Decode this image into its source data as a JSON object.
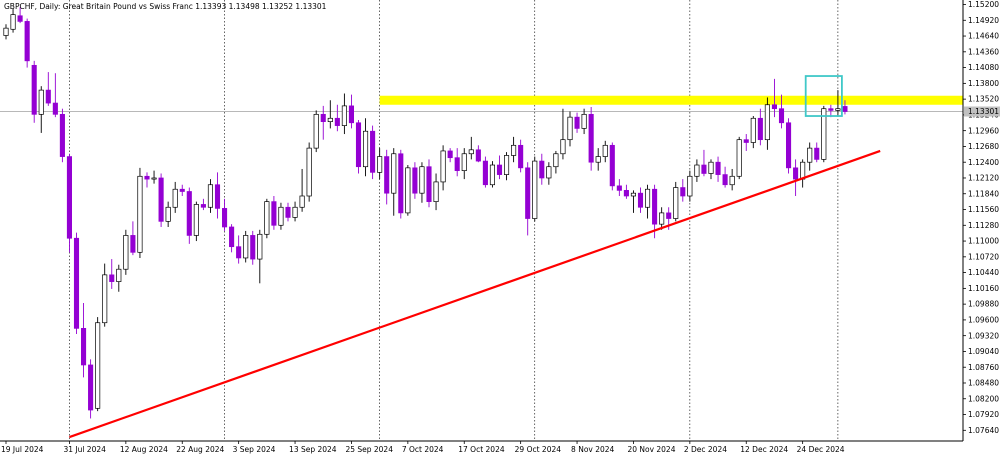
{
  "chart_data": {
    "type": "candlestick",
    "title": "GBPCHF, Daily:  Great Britain Pound vs Swiss Franc  1.13393 1.13498 1.13252 1.13301",
    "symbol": "GBPCHF",
    "timeframe": "Daily",
    "description": "Great Britain Pound vs Swiss Franc",
    "ohlc_header": "1.13393 1.13498 1.13252 1.13301",
    "current_price_label": "1.13301",
    "ylim": [
      1.0745,
      1.1528
    ],
    "y_ticks": [
      "1.15200",
      "1.14920",
      "1.14640",
      "1.14360",
      "1.14080",
      "1.13800",
      "1.13520",
      "1.13240",
      "1.12960",
      "1.12680",
      "1.12400",
      "1.12120",
      "1.11840",
      "1.11560",
      "1.11280",
      "1.11000",
      "1.10720",
      "1.10440",
      "1.10160",
      "1.09880",
      "1.09600",
      "1.09320",
      "1.09040",
      "1.08760",
      "1.08480",
      "1.08200",
      "1.07920",
      "1.07640"
    ],
    "x_labels": [
      {
        "label": "19 Jul 2024",
        "index": 0
      },
      {
        "label": "31 Jul 2024",
        "index": 9
      },
      {
        "label": "12 Aug 2024",
        "index": 17
      },
      {
        "label": "22 Aug 2024",
        "index": 25
      },
      {
        "label": "3 Sep 2024",
        "index": 33
      },
      {
        "label": "13 Sep 2024",
        "index": 41
      },
      {
        "label": "25 Sep 2024",
        "index": 49
      },
      {
        "label": "7 Oct 2024",
        "index": 57
      },
      {
        "label": "17 Oct 2024",
        "index": 65
      },
      {
        "label": "29 Oct 2024",
        "index": 73
      },
      {
        "label": "8 Nov 2024",
        "index": 81
      },
      {
        "label": "20 Nov 2024",
        "index": 89
      },
      {
        "label": "2 Dec 2024",
        "index": 97
      },
      {
        "label": "12 Dec 2024",
        "index": 105
      },
      {
        "label": "24 Dec 2024",
        "index": 113
      }
    ],
    "vgrid_indices": [
      9,
      31,
      53,
      75,
      97,
      118
    ],
    "colors": {
      "bull_fill": "#ffffff",
      "bull_border": "#000000",
      "bear_fill": "#9400d3",
      "bear_border": "#9400d3",
      "wick_bull": "#000000",
      "wick_bear": "#9400d3",
      "resistance": "#ffff00",
      "trendline": "#ff0000",
      "box": "#40c8c8",
      "price_line": "#a0a0a0"
    },
    "resistance_zone": {
      "low": 1.1342,
      "high": 1.1358
    },
    "trendline": {
      "from": {
        "index": 9,
        "price": 1.0752
      },
      "to": {
        "index": 124,
        "price": 1.126
      }
    },
    "highlight_box": {
      "index_from": 114,
      "index_to": 118,
      "low": 1.1322,
      "high": 1.1393
    },
    "candles": [
      {
        "o": 1.1465,
        "h": 1.1485,
        "l": 1.1458,
        "c": 1.1478
      },
      {
        "o": 1.1476,
        "h": 1.1512,
        "l": 1.147,
        "c": 1.1502
      },
      {
        "o": 1.15,
        "h": 1.1515,
        "l": 1.1487,
        "c": 1.149
      },
      {
        "o": 1.149,
        "h": 1.1495,
        "l": 1.1408,
        "c": 1.142
      },
      {
        "o": 1.1412,
        "h": 1.142,
        "l": 1.131,
        "c": 1.1325
      },
      {
        "o": 1.1325,
        "h": 1.1375,
        "l": 1.1292,
        "c": 1.1368
      },
      {
        "o": 1.1368,
        "h": 1.14,
        "l": 1.134,
        "c": 1.1345
      },
      {
        "o": 1.1345,
        "h": 1.1398,
        "l": 1.132,
        "c": 1.1325
      },
      {
        "o": 1.1325,
        "h": 1.1335,
        "l": 1.124,
        "c": 1.125
      },
      {
        "o": 1.125,
        "h": 1.1255,
        "l": 1.108,
        "c": 1.1105
      },
      {
        "o": 1.1105,
        "h": 1.1115,
        "l": 1.0935,
        "c": 1.0945
      },
      {
        "o": 1.0945,
        "h": 1.099,
        "l": 1.0858,
        "c": 1.088
      },
      {
        "o": 1.088,
        "h": 1.089,
        "l": 1.0785,
        "c": 1.08
      },
      {
        "o": 1.0803,
        "h": 1.0965,
        "l": 1.0798,
        "c": 1.0955
      },
      {
        "o": 1.0955,
        "h": 1.106,
        "l": 1.0948,
        "c": 1.104
      },
      {
        "o": 1.104,
        "h": 1.1068,
        "l": 1.1015,
        "c": 1.1028
      },
      {
        "o": 1.1028,
        "h": 1.1058,
        "l": 1.101,
        "c": 1.105
      },
      {
        "o": 1.105,
        "h": 1.112,
        "l": 1.104,
        "c": 1.111
      },
      {
        "o": 1.111,
        "h": 1.1135,
        "l": 1.1075,
        "c": 1.108
      },
      {
        "o": 1.108,
        "h": 1.123,
        "l": 1.107,
        "c": 1.1215
      },
      {
        "o": 1.1215,
        "h": 1.1222,
        "l": 1.1195,
        "c": 1.121
      },
      {
        "o": 1.121,
        "h": 1.1225,
        "l": 1.1202,
        "c": 1.1212
      },
      {
        "o": 1.1212,
        "h": 1.122,
        "l": 1.1125,
        "c": 1.1135
      },
      {
        "o": 1.1135,
        "h": 1.117,
        "l": 1.1125,
        "c": 1.116
      },
      {
        "o": 1.116,
        "h": 1.1205,
        "l": 1.115,
        "c": 1.1192
      },
      {
        "o": 1.1192,
        "h": 1.12,
        "l": 1.118,
        "c": 1.1188
      },
      {
        "o": 1.1188,
        "h": 1.1195,
        "l": 1.1095,
        "c": 1.111
      },
      {
        "o": 1.111,
        "h": 1.117,
        "l": 1.11,
        "c": 1.1165
      },
      {
        "o": 1.1165,
        "h": 1.1175,
        "l": 1.1155,
        "c": 1.116
      },
      {
        "o": 1.116,
        "h": 1.121,
        "l": 1.115,
        "c": 1.12
      },
      {
        "o": 1.12,
        "h": 1.1222,
        "l": 1.114,
        "c": 1.1158
      },
      {
        "o": 1.1158,
        "h": 1.1175,
        "l": 1.1118,
        "c": 1.1125
      },
      {
        "o": 1.1125,
        "h": 1.113,
        "l": 1.108,
        "c": 1.109
      },
      {
        "o": 1.109,
        "h": 1.111,
        "l": 1.106,
        "c": 1.107
      },
      {
        "o": 1.107,
        "h": 1.1118,
        "l": 1.1062,
        "c": 1.111
      },
      {
        "o": 1.111,
        "h": 1.1118,
        "l": 1.1058,
        "c": 1.1068
      },
      {
        "o": 1.1068,
        "h": 1.112,
        "l": 1.1025,
        "c": 1.1112
      },
      {
        "o": 1.1112,
        "h": 1.1175,
        "l": 1.1105,
        "c": 1.117
      },
      {
        "o": 1.117,
        "h": 1.118,
        "l": 1.112,
        "c": 1.1128
      },
      {
        "o": 1.1128,
        "h": 1.1168,
        "l": 1.112,
        "c": 1.116
      },
      {
        "o": 1.116,
        "h": 1.1168,
        "l": 1.1135,
        "c": 1.1142
      },
      {
        "o": 1.1142,
        "h": 1.117,
        "l": 1.1135,
        "c": 1.116
      },
      {
        "o": 1.116,
        "h": 1.1228,
        "l": 1.1152,
        "c": 1.118
      },
      {
        "o": 1.118,
        "h": 1.1275,
        "l": 1.117,
        "c": 1.1265
      },
      {
        "o": 1.1265,
        "h": 1.1332,
        "l": 1.1258,
        "c": 1.1325
      },
      {
        "o": 1.1325,
        "h": 1.134,
        "l": 1.128,
        "c": 1.1312
      },
      {
        "o": 1.1312,
        "h": 1.135,
        "l": 1.13,
        "c": 1.1318
      },
      {
        "o": 1.1318,
        "h": 1.1342,
        "l": 1.1295,
        "c": 1.1305
      },
      {
        "o": 1.1305,
        "h": 1.1362,
        "l": 1.129,
        "c": 1.134
      },
      {
        "o": 1.134,
        "h": 1.136,
        "l": 1.13,
        "c": 1.131
      },
      {
        "o": 1.131,
        "h": 1.1315,
        "l": 1.122,
        "c": 1.1232
      },
      {
        "o": 1.1232,
        "h": 1.1318,
        "l": 1.1215,
        "c": 1.1295
      },
      {
        "o": 1.1295,
        "h": 1.1305,
        "l": 1.121,
        "c": 1.1222
      },
      {
        "o": 1.1222,
        "h": 1.1265,
        "l": 1.121,
        "c": 1.125
      },
      {
        "o": 1.125,
        "h": 1.1262,
        "l": 1.1165,
        "c": 1.1185
      },
      {
        "o": 1.1185,
        "h": 1.1265,
        "l": 1.1145,
        "c": 1.1255
      },
      {
        "o": 1.1255,
        "h": 1.1262,
        "l": 1.114,
        "c": 1.115
      },
      {
        "o": 1.115,
        "h": 1.1235,
        "l": 1.1145,
        "c": 1.123
      },
      {
        "o": 1.123,
        "h": 1.124,
        "l": 1.1175,
        "c": 1.1185
      },
      {
        "o": 1.1185,
        "h": 1.124,
        "l": 1.1168,
        "c": 1.1232
      },
      {
        "o": 1.1232,
        "h": 1.1245,
        "l": 1.116,
        "c": 1.117
      },
      {
        "o": 1.117,
        "h": 1.122,
        "l": 1.1155,
        "c": 1.1205
      },
      {
        "o": 1.1205,
        "h": 1.127,
        "l": 1.119,
        "c": 1.126
      },
      {
        "o": 1.126,
        "h": 1.1265,
        "l": 1.124,
        "c": 1.1248
      },
      {
        "o": 1.1248,
        "h": 1.1265,
        "l": 1.1215,
        "c": 1.1225
      },
      {
        "o": 1.1225,
        "h": 1.1265,
        "l": 1.121,
        "c": 1.1255
      },
      {
        "o": 1.1255,
        "h": 1.1285,
        "l": 1.1245,
        "c": 1.1262
      },
      {
        "o": 1.1262,
        "h": 1.127,
        "l": 1.124,
        "c": 1.1242
      },
      {
        "o": 1.1242,
        "h": 1.125,
        "l": 1.1195,
        "c": 1.12
      },
      {
        "o": 1.12,
        "h": 1.1242,
        "l": 1.1195,
        "c": 1.1235
      },
      {
        "o": 1.1235,
        "h": 1.1252,
        "l": 1.121,
        "c": 1.1218
      },
      {
        "o": 1.1218,
        "h": 1.1258,
        "l": 1.1208,
        "c": 1.1252
      },
      {
        "o": 1.1252,
        "h": 1.1285,
        "l": 1.124,
        "c": 1.127
      },
      {
        "o": 1.127,
        "h": 1.128,
        "l": 1.1222,
        "c": 1.123
      },
      {
        "o": 1.123,
        "h": 1.124,
        "l": 1.111,
        "c": 1.114
      },
      {
        "o": 1.114,
        "h": 1.125,
        "l": 1.1135,
        "c": 1.1242
      },
      {
        "o": 1.1242,
        "h": 1.1255,
        "l": 1.12,
        "c": 1.1212
      },
      {
        "o": 1.1212,
        "h": 1.124,
        "l": 1.12,
        "c": 1.1232
      },
      {
        "o": 1.1232,
        "h": 1.126,
        "l": 1.122,
        "c": 1.1255
      },
      {
        "o": 1.1255,
        "h": 1.1335,
        "l": 1.1245,
        "c": 1.128
      },
      {
        "o": 1.128,
        "h": 1.133,
        "l": 1.1268,
        "c": 1.132
      },
      {
        "o": 1.132,
        "h": 1.1328,
        "l": 1.1292,
        "c": 1.13
      },
      {
        "o": 1.13,
        "h": 1.1335,
        "l": 1.129,
        "c": 1.1325
      },
      {
        "o": 1.1325,
        "h": 1.1338,
        "l": 1.1225,
        "c": 1.124
      },
      {
        "o": 1.124,
        "h": 1.1265,
        "l": 1.1225,
        "c": 1.125
      },
      {
        "o": 1.125,
        "h": 1.1278,
        "l": 1.124,
        "c": 1.127
      },
      {
        "o": 1.127,
        "h": 1.1275,
        "l": 1.119,
        "c": 1.1198
      },
      {
        "o": 1.1198,
        "h": 1.121,
        "l": 1.118,
        "c": 1.119
      },
      {
        "o": 1.119,
        "h": 1.12,
        "l": 1.1175,
        "c": 1.118
      },
      {
        "o": 1.118,
        "h": 1.119,
        "l": 1.115,
        "c": 1.1185
      },
      {
        "o": 1.1185,
        "h": 1.1195,
        "l": 1.115,
        "c": 1.116
      },
      {
        "o": 1.116,
        "h": 1.12,
        "l": 1.114,
        "c": 1.1192
      },
      {
        "o": 1.1192,
        "h": 1.12,
        "l": 1.1105,
        "c": 1.113
      },
      {
        "o": 1.113,
        "h": 1.116,
        "l": 1.112,
        "c": 1.115
      },
      {
        "o": 1.115,
        "h": 1.116,
        "l": 1.112,
        "c": 1.114
      },
      {
        "o": 1.114,
        "h": 1.1205,
        "l": 1.1135,
        "c": 1.1195
      },
      {
        "o": 1.1195,
        "h": 1.121,
        "l": 1.117,
        "c": 1.118
      },
      {
        "o": 1.118,
        "h": 1.1225,
        "l": 1.117,
        "c": 1.1215
      },
      {
        "o": 1.1215,
        "h": 1.1245,
        "l": 1.1205,
        "c": 1.1235
      },
      {
        "o": 1.1235,
        "h": 1.1262,
        "l": 1.1215,
        "c": 1.122
      },
      {
        "o": 1.122,
        "h": 1.1245,
        "l": 1.121,
        "c": 1.124
      },
      {
        "o": 1.124,
        "h": 1.125,
        "l": 1.1205,
        "c": 1.1218
      },
      {
        "o": 1.1218,
        "h": 1.1232,
        "l": 1.1195,
        "c": 1.12
      },
      {
        "o": 1.12,
        "h": 1.1228,
        "l": 1.119,
        "c": 1.1215
      },
      {
        "o": 1.1215,
        "h": 1.1285,
        "l": 1.121,
        "c": 1.128
      },
      {
        "o": 1.128,
        "h": 1.129,
        "l": 1.126,
        "c": 1.1275
      },
      {
        "o": 1.1275,
        "h": 1.1322,
        "l": 1.1265,
        "c": 1.1318
      },
      {
        "o": 1.1318,
        "h": 1.1335,
        "l": 1.127,
        "c": 1.128
      },
      {
        "o": 1.128,
        "h": 1.1355,
        "l": 1.1262,
        "c": 1.1342
      },
      {
        "o": 1.1342,
        "h": 1.1388,
        "l": 1.132,
        "c": 1.1335
      },
      {
        "o": 1.1335,
        "h": 1.136,
        "l": 1.13,
        "c": 1.131
      },
      {
        "o": 1.131,
        "h": 1.1318,
        "l": 1.122,
        "c": 1.123
      },
      {
        "o": 1.123,
        "h": 1.1245,
        "l": 1.118,
        "c": 1.121
      },
      {
        "o": 1.121,
        "h": 1.1245,
        "l": 1.1195,
        "c": 1.124
      },
      {
        "o": 1.124,
        "h": 1.1275,
        "l": 1.1225,
        "c": 1.1265
      },
      {
        "o": 1.1265,
        "h": 1.1275,
        "l": 1.124,
        "c": 1.1245
      },
      {
        "o": 1.1245,
        "h": 1.134,
        "l": 1.124,
        "c": 1.1335
      },
      {
        "o": 1.1335,
        "h": 1.1342,
        "l": 1.132,
        "c": 1.1332
      },
      {
        "o": 1.1332,
        "h": 1.1368,
        "l": 1.1322,
        "c": 1.1335
      },
      {
        "o": 1.1339,
        "h": 1.135,
        "l": 1.1325,
        "c": 1.133
      }
    ]
  }
}
